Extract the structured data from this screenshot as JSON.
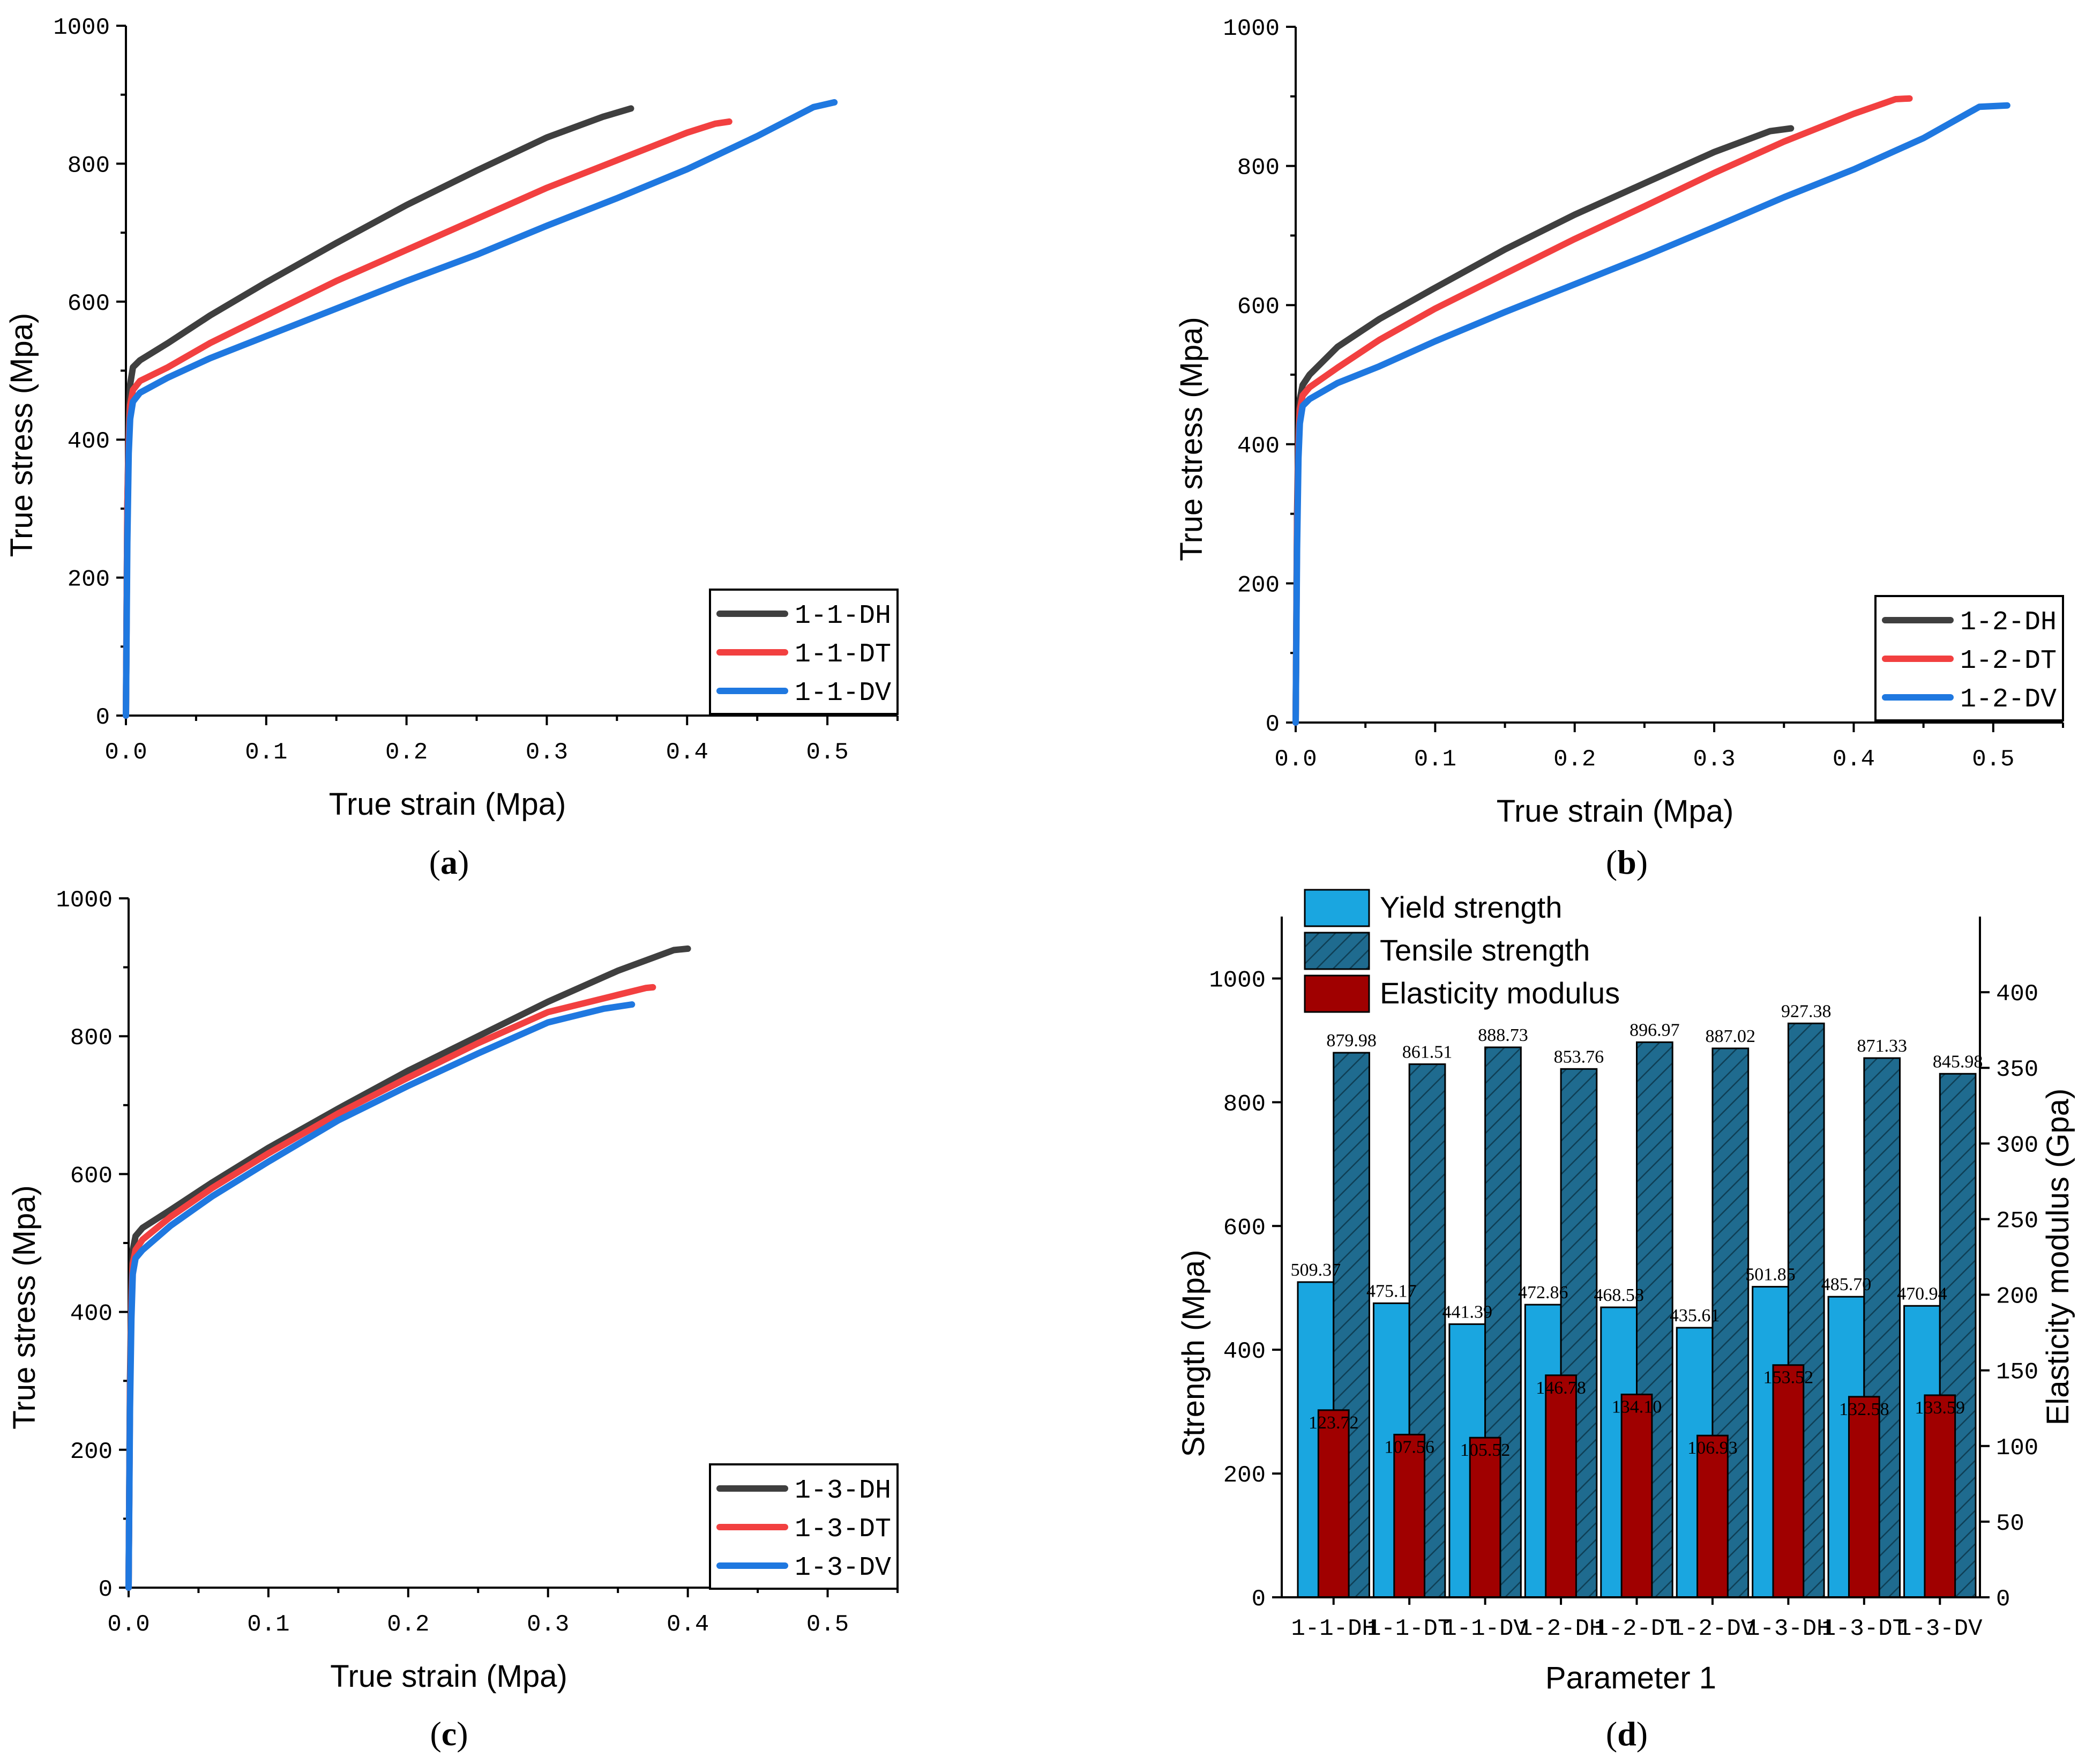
{
  "figure": {
    "panel_labels": [
      "a",
      "b",
      "c",
      "d"
    ],
    "colors": {
      "DH": "#3f3f3f",
      "DT": "#f24040",
      "DV": "#1f78e0",
      "yield": "#1aa6e0",
      "tensile": "#1f6b8f",
      "modulus": "#a00000"
    }
  },
  "chart_data": [
    {
      "type": "line",
      "panel": "a",
      "xlabel": "True strain (Mpa)",
      "ylabel": "True stress (Mpa)",
      "xlim": [
        0,
        0.55
      ],
      "ylim": [
        0,
        1000
      ],
      "xticks": [
        0.0,
        0.1,
        0.2,
        0.3,
        0.4,
        0.5
      ],
      "xtick_labels": [
        "0.0",
        "0.1",
        "0.2",
        "0.3",
        "0.4",
        "0.5"
      ],
      "yticks": [
        0,
        200,
        400,
        600,
        800,
        1000
      ],
      "ytick_labels": [
        "0",
        "200",
        "400",
        "600",
        "800",
        "1000"
      ],
      "legend_position": "bottom-right",
      "series": [
        {
          "name": "1-1-DH",
          "color": "#3f3f3f",
          "x": [
            0,
            0.001,
            0.002,
            0.003,
            0.005,
            0.01,
            0.03,
            0.06,
            0.1,
            0.15,
            0.2,
            0.25,
            0.3,
            0.34,
            0.36
          ],
          "y": [
            0,
            300,
            420,
            480,
            505,
            515,
            540,
            580,
            628,
            685,
            740,
            790,
            838,
            868,
            880
          ]
        },
        {
          "name": "1-1-DT",
          "color": "#f24040",
          "x": [
            0,
            0.001,
            0.002,
            0.003,
            0.005,
            0.01,
            0.03,
            0.06,
            0.1,
            0.15,
            0.2,
            0.25,
            0.3,
            0.35,
            0.4,
            0.42,
            0.43
          ],
          "y": [
            0,
            300,
            400,
            450,
            472,
            485,
            505,
            540,
            580,
            630,
            675,
            720,
            765,
            805,
            845,
            858,
            861
          ]
        },
        {
          "name": "1-1-DV",
          "color": "#1f78e0",
          "x": [
            0,
            0.001,
            0.002,
            0.003,
            0.005,
            0.01,
            0.03,
            0.06,
            0.1,
            0.15,
            0.2,
            0.25,
            0.3,
            0.35,
            0.4,
            0.45,
            0.49,
            0.505
          ],
          "y": [
            0,
            250,
            380,
            430,
            455,
            468,
            490,
            518,
            550,
            590,
            630,
            668,
            710,
            750,
            792,
            840,
            882,
            889
          ]
        }
      ]
    },
    {
      "type": "line",
      "panel": "b",
      "xlabel": "True strain (Mpa)",
      "ylabel": "True stress (Mpa)",
      "xlim": [
        0,
        0.55
      ],
      "ylim": [
        0,
        1000
      ],
      "xticks": [
        0.0,
        0.1,
        0.2,
        0.3,
        0.4,
        0.5
      ],
      "xtick_labels": [
        "0.0",
        "0.1",
        "0.2",
        "0.3",
        "0.4",
        "0.5"
      ],
      "yticks": [
        0,
        200,
        400,
        600,
        800,
        1000
      ],
      "ytick_labels": [
        "0",
        "200",
        "400",
        "600",
        "800",
        "1000"
      ],
      "legend_position": "bottom-right",
      "series": [
        {
          "name": "1-2-DH",
          "color": "#3f3f3f",
          "x": [
            0,
            0.001,
            0.002,
            0.003,
            0.005,
            0.01,
            0.03,
            0.06,
            0.1,
            0.15,
            0.2,
            0.25,
            0.3,
            0.34,
            0.355
          ],
          "y": [
            0,
            300,
            420,
            465,
            485,
            500,
            540,
            580,
            625,
            680,
            730,
            775,
            820,
            850,
            854
          ]
        },
        {
          "name": "1-2-DT",
          "color": "#f24040",
          "x": [
            0,
            0.001,
            0.002,
            0.003,
            0.005,
            0.01,
            0.03,
            0.06,
            0.1,
            0.15,
            0.2,
            0.25,
            0.3,
            0.35,
            0.4,
            0.43,
            0.44
          ],
          "y": [
            0,
            280,
            400,
            450,
            470,
            482,
            510,
            550,
            595,
            645,
            695,
            742,
            790,
            835,
            875,
            896,
            897
          ]
        },
        {
          "name": "1-2-DV",
          "color": "#1f78e0",
          "x": [
            0,
            0.001,
            0.002,
            0.003,
            0.005,
            0.01,
            0.03,
            0.06,
            0.1,
            0.15,
            0.2,
            0.25,
            0.3,
            0.35,
            0.4,
            0.45,
            0.49,
            0.51
          ],
          "y": [
            0,
            250,
            380,
            430,
            455,
            465,
            488,
            512,
            548,
            590,
            630,
            670,
            712,
            755,
            795,
            840,
            885,
            887
          ]
        }
      ]
    },
    {
      "type": "line",
      "panel": "c",
      "xlabel": "True strain (Mpa)",
      "ylabel": "True stress (Mpa)",
      "xlim": [
        0,
        0.55
      ],
      "ylim": [
        0,
        1000
      ],
      "xticks": [
        0.0,
        0.1,
        0.2,
        0.3,
        0.4,
        0.5
      ],
      "xtick_labels": [
        "0.0",
        "0.1",
        "0.2",
        "0.3",
        "0.4",
        "0.5"
      ],
      "yticks": [
        0,
        200,
        400,
        600,
        800,
        1000
      ],
      "ytick_labels": [
        "0",
        "200",
        "400",
        "600",
        "800",
        "1000"
      ],
      "legend_position": "bottom-right",
      "series": [
        {
          "name": "1-3-DH",
          "color": "#3f3f3f",
          "x": [
            0,
            0.001,
            0.002,
            0.003,
            0.005,
            0.01,
            0.03,
            0.06,
            0.1,
            0.15,
            0.2,
            0.25,
            0.3,
            0.35,
            0.39,
            0.4
          ],
          "y": [
            0,
            300,
            430,
            490,
            510,
            522,
            548,
            588,
            638,
            695,
            750,
            800,
            850,
            895,
            925,
            927
          ]
        },
        {
          "name": "1-3-DT",
          "color": "#f24040",
          "x": [
            0,
            0.001,
            0.002,
            0.003,
            0.005,
            0.01,
            0.03,
            0.06,
            0.1,
            0.15,
            0.2,
            0.25,
            0.3,
            0.35,
            0.37,
            0.375
          ],
          "y": [
            0,
            280,
            410,
            470,
            490,
            505,
            538,
            580,
            630,
            688,
            740,
            790,
            835,
            860,
            870,
            871
          ]
        },
        {
          "name": "1-3-DV",
          "color": "#1f78e0",
          "x": [
            0,
            0.001,
            0.002,
            0.003,
            0.005,
            0.01,
            0.03,
            0.06,
            0.1,
            0.15,
            0.2,
            0.25,
            0.3,
            0.34,
            0.36
          ],
          "y": [
            0,
            260,
            390,
            455,
            478,
            490,
            525,
            568,
            618,
            678,
            728,
            775,
            820,
            840,
            846
          ]
        }
      ]
    },
    {
      "type": "bar",
      "panel": "d",
      "xlabel": "Parameter 1",
      "ylabel": "Strength (Mpa)",
      "y2label": "Elasticity modulus (Gpa)",
      "ylim": [
        0,
        1100
      ],
      "y2lim": [
        0,
        450
      ],
      "yticks": [
        0,
        200,
        400,
        600,
        800,
        1000
      ],
      "ytick_labels": [
        "0",
        "200",
        "400",
        "600",
        "800",
        "1000"
      ],
      "y2ticks": [
        0,
        50,
        100,
        150,
        200,
        250,
        300,
        350,
        400
      ],
      "y2tick_labels": [
        "0",
        "50",
        "100",
        "150",
        "200",
        "250",
        "300",
        "350",
        "400"
      ],
      "legend_position": "top-left",
      "categories": [
        "1-1-DH",
        "1-1-DT",
        "1-1-DV",
        "1-2-DH",
        "1-2-DT",
        "1-2-DV",
        "1-3-DH",
        "1-3-DT",
        "1-3-DV"
      ],
      "series": [
        {
          "name": "Yield strength",
          "axis": "left",
          "color": "#1aa6e0",
          "values": [
            509.37,
            475.17,
            441.39,
            472.86,
            468.58,
            435.61,
            501.85,
            485.7,
            470.94
          ],
          "labels": [
            "509.37",
            "475.17",
            "441.39",
            "472.86",
            "468.58",
            "435.61",
            "501.85",
            "485.70",
            "470.94"
          ]
        },
        {
          "name": "Tensile strength",
          "axis": "left",
          "color": "#1f6b8f",
          "hatch": true,
          "values": [
            879.98,
            861.51,
            888.73,
            853.76,
            896.97,
            887.02,
            927.38,
            871.33,
            845.98
          ],
          "labels": [
            "879.98",
            "861.51",
            "888.73",
            "853.76",
            "896.97",
            "887.02",
            "927.38",
            "871.33",
            "845.98"
          ]
        },
        {
          "name": "Elasticity modulus",
          "axis": "right",
          "color": "#a00000",
          "values": [
            123.72,
            107.56,
            105.52,
            146.78,
            134.1,
            106.93,
            153.52,
            132.58,
            133.59
          ],
          "labels": [
            "123.72",
            "107.56",
            "105.52",
            "146.78",
            "134.10",
            "106.93",
            "153.52",
            "132.58",
            "133.59"
          ]
        }
      ]
    }
  ]
}
